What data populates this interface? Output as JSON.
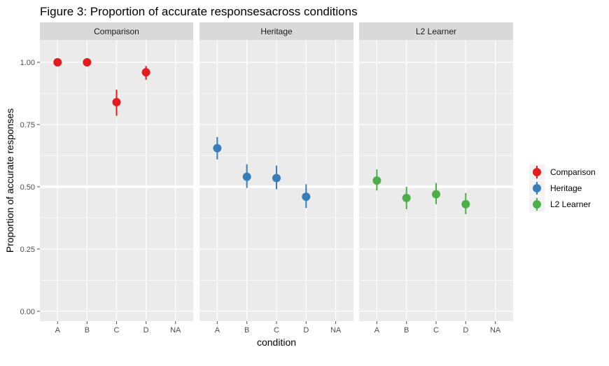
{
  "chart_data": {
    "type": "scatter",
    "title": "Figure 3: Proportion of accurate responsesacross conditions",
    "xlabel": "condition",
    "ylabel": "Proportion of accurate responses",
    "ylim": [
      -0.04,
      1.09
    ],
    "y_ticks": [
      "0.00",
      "0.25",
      "0.50",
      "0.75",
      "1.00"
    ],
    "y_tick_values": [
      0,
      0.25,
      0.5,
      0.75,
      1
    ],
    "categories": [
      "A",
      "B",
      "C",
      "D",
      "NA"
    ],
    "reference_line": 0.5,
    "grid": true,
    "legend_position": "right",
    "series": [
      {
        "name": "Comparison",
        "panel": "Comparison",
        "color": "#E41A1C",
        "points": [
          {
            "x": "A",
            "y": 1.0,
            "ymin": 1.0,
            "ymax": 1.0
          },
          {
            "x": "B",
            "y": 1.0,
            "ymin": 1.0,
            "ymax": 1.0
          },
          {
            "x": "C",
            "y": 0.84,
            "ymin": 0.785,
            "ymax": 0.89
          },
          {
            "x": "D",
            "y": 0.96,
            "ymin": 0.93,
            "ymax": 0.985
          }
        ]
      },
      {
        "name": "Heritage",
        "panel": "Heritage",
        "color": "#377EB8",
        "points": [
          {
            "x": "A",
            "y": 0.655,
            "ymin": 0.61,
            "ymax": 0.7
          },
          {
            "x": "B",
            "y": 0.54,
            "ymin": 0.495,
            "ymax": 0.59
          },
          {
            "x": "C",
            "y": 0.535,
            "ymin": 0.49,
            "ymax": 0.585
          },
          {
            "x": "D",
            "y": 0.46,
            "ymin": 0.415,
            "ymax": 0.51
          }
        ]
      },
      {
        "name": "L2 Learner",
        "panel": "L2 Learner",
        "color": "#4DAF4A",
        "points": [
          {
            "x": "A",
            "y": 0.525,
            "ymin": 0.485,
            "ymax": 0.57
          },
          {
            "x": "B",
            "y": 0.455,
            "ymin": 0.41,
            "ymax": 0.5
          },
          {
            "x": "C",
            "y": 0.47,
            "ymin": 0.43,
            "ymax": 0.515
          },
          {
            "x": "D",
            "y": 0.43,
            "ymin": 0.39,
            "ymax": 0.475
          }
        ]
      }
    ],
    "colors": {
      "panel_bg": "#EBEBEB",
      "grid": "#FFFFFF",
      "strip_bg": "#D9D9D9"
    }
  }
}
